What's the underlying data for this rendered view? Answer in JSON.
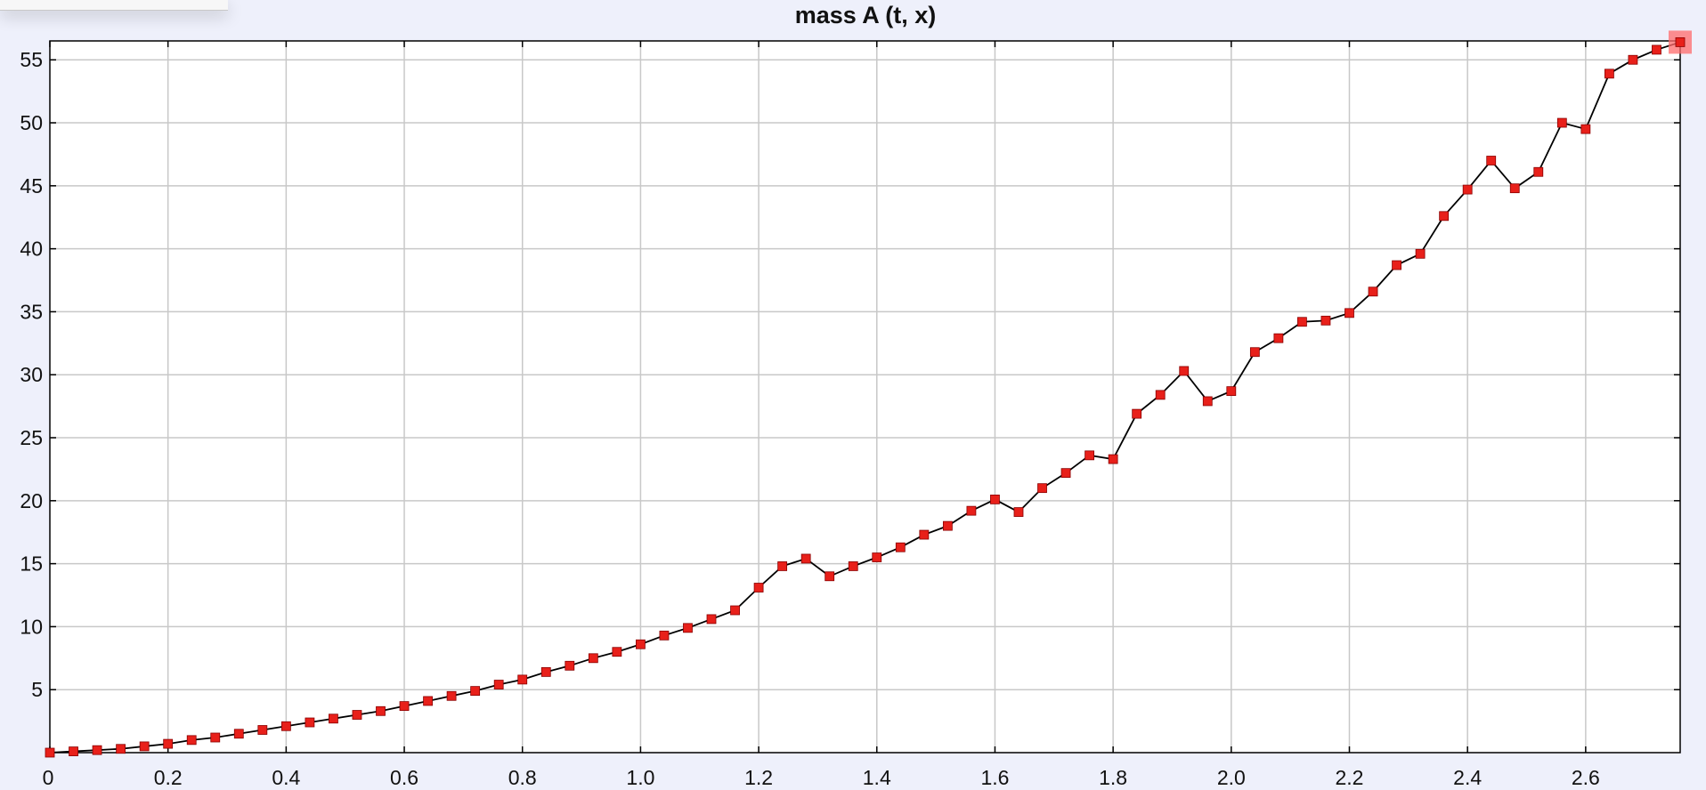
{
  "chart_data": {
    "type": "line",
    "title": "mass A (t, x)",
    "xlabel": "",
    "ylabel": "",
    "xlim": [
      0,
      2.76
    ],
    "ylim": [
      0,
      56.5
    ],
    "grid": true,
    "x_ticks": [
      "0",
      "0.2",
      "0.4",
      "0.6",
      "0.8",
      "1.0",
      "1.2",
      "1.4",
      "1.6",
      "1.8",
      "2.0",
      "2.2",
      "2.4",
      "2.6"
    ],
    "x_tick_values": [
      0,
      0.2,
      0.4,
      0.6,
      0.8,
      1.0,
      1.2,
      1.4,
      1.6,
      1.8,
      2.0,
      2.2,
      2.4,
      2.6
    ],
    "y_ticks": [
      "5",
      "10",
      "15",
      "20",
      "25",
      "30",
      "35",
      "40",
      "45",
      "50",
      "55"
    ],
    "y_tick_values": [
      5,
      10,
      15,
      20,
      25,
      30,
      35,
      40,
      45,
      50,
      55
    ],
    "series": [
      {
        "line_color": "#000000",
        "marker_color": "#e8201a",
        "x": [
          0,
          0.04,
          0.08,
          0.12,
          0.16,
          0.2,
          0.24,
          0.28,
          0.32,
          0.36,
          0.4,
          0.44,
          0.48,
          0.52,
          0.56,
          0.6,
          0.64,
          0.68,
          0.72,
          0.76,
          0.8,
          0.84,
          0.88,
          0.92,
          0.96,
          1.0,
          1.04,
          1.08,
          1.12,
          1.16,
          1.2,
          1.24,
          1.28,
          1.32,
          1.36,
          1.4,
          1.44,
          1.48,
          1.52,
          1.56,
          1.6,
          1.64,
          1.68,
          1.72,
          1.76,
          1.8,
          1.84,
          1.88,
          1.92,
          1.96,
          2.0,
          2.04,
          2.08,
          2.12,
          2.16,
          2.2,
          2.24,
          2.28,
          2.32,
          2.36,
          2.4,
          2.44,
          2.48,
          2.52,
          2.56,
          2.6,
          2.64,
          2.68,
          2.72,
          2.76
        ],
        "y": [
          0,
          0.1,
          0.2,
          0.3,
          0.5,
          0.7,
          1.0,
          1.2,
          1.5,
          1.8,
          2.1,
          2.4,
          2.7,
          3.0,
          3.3,
          3.7,
          4.1,
          4.5,
          4.9,
          5.4,
          5.8,
          6.4,
          6.9,
          7.5,
          8.0,
          8.6,
          9.3,
          9.9,
          10.6,
          11.3,
          13.1,
          14.8,
          15.4,
          14.0,
          14.8,
          15.5,
          16.3,
          17.3,
          18.0,
          19.2,
          20.1,
          19.1,
          21.0,
          22.2,
          23.6,
          23.3,
          26.9,
          28.4,
          30.3,
          27.9,
          28.7,
          31.8,
          32.9,
          34.2,
          34.3,
          34.9,
          36.6,
          38.7,
          39.6,
          42.6,
          44.7,
          47.0,
          44.8,
          46.1,
          50.0,
          49.5,
          53.9,
          55.0,
          55.8,
          56.4
        ]
      }
    ]
  }
}
